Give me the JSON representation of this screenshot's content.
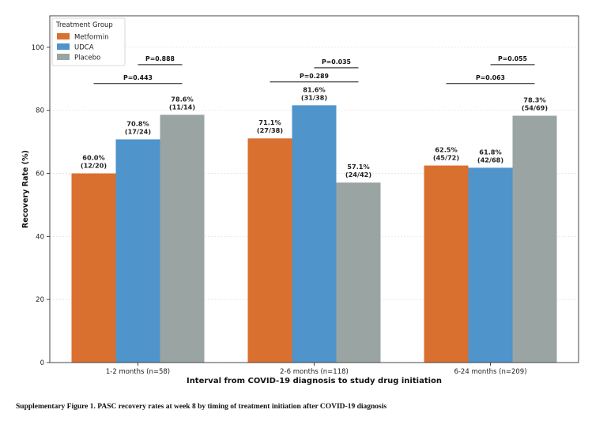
{
  "chart_data": {
    "type": "bar",
    "xlabel": "Interval from COVID-19 diagnosis to study drug initiation",
    "ylabel": "Recovery Rate (%)",
    "ylim": [
      0,
      110
    ],
    "yticks": [
      0,
      20,
      40,
      60,
      80,
      100
    ],
    "grid": true,
    "legend": {
      "title": "Treatment Group",
      "placement": "top-left"
    },
    "categories": [
      "1-2 months (n=58)",
      "2-6 months (n=118)",
      "6-24 months (n=209)"
    ],
    "series": [
      {
        "name": "Metformin",
        "color": "#D9702F",
        "values": [
          60.0,
          71.1,
          62.5
        ],
        "labels": [
          "60.0%\n(12/20)",
          "71.1%\n(27/38)",
          "62.5%\n(45/72)"
        ]
      },
      {
        "name": "UDCA",
        "color": "#4F94CB",
        "values": [
          70.8,
          81.6,
          61.8
        ],
        "labels": [
          "70.8%\n(17/24)",
          "81.6%\n(31/38)",
          "61.8%\n(42/68)"
        ]
      },
      {
        "name": "Placebo",
        "color": "#9AA5A3",
        "values": [
          78.6,
          57.1,
          78.3
        ],
        "labels": [
          "78.6%\n(11/14)",
          "57.1%\n(24/42)",
          "78.3%\n(54/69)"
        ]
      }
    ],
    "comparisons": [
      {
        "category": 0,
        "from": 0,
        "to": 2,
        "level": 88.5,
        "label": "P=0.443"
      },
      {
        "category": 0,
        "from": 1,
        "to": 2,
        "level": 94.5,
        "label": "P=0.888"
      },
      {
        "category": 1,
        "from": 0,
        "to": 2,
        "level": 89.0,
        "label": "P=0.289"
      },
      {
        "category": 1,
        "from": 1,
        "to": 2,
        "level": 93.5,
        "label": "P=0.035"
      },
      {
        "category": 2,
        "from": 0,
        "to": 2,
        "level": 88.5,
        "label": "P=0.063"
      },
      {
        "category": 2,
        "from": 1,
        "to": 2,
        "level": 94.5,
        "label": "P=0.055"
      }
    ]
  },
  "caption": "Supplementary Figure 1. PASC recovery rates at week 8 by timing of treatment initiation after COVID-19 diagnosis"
}
